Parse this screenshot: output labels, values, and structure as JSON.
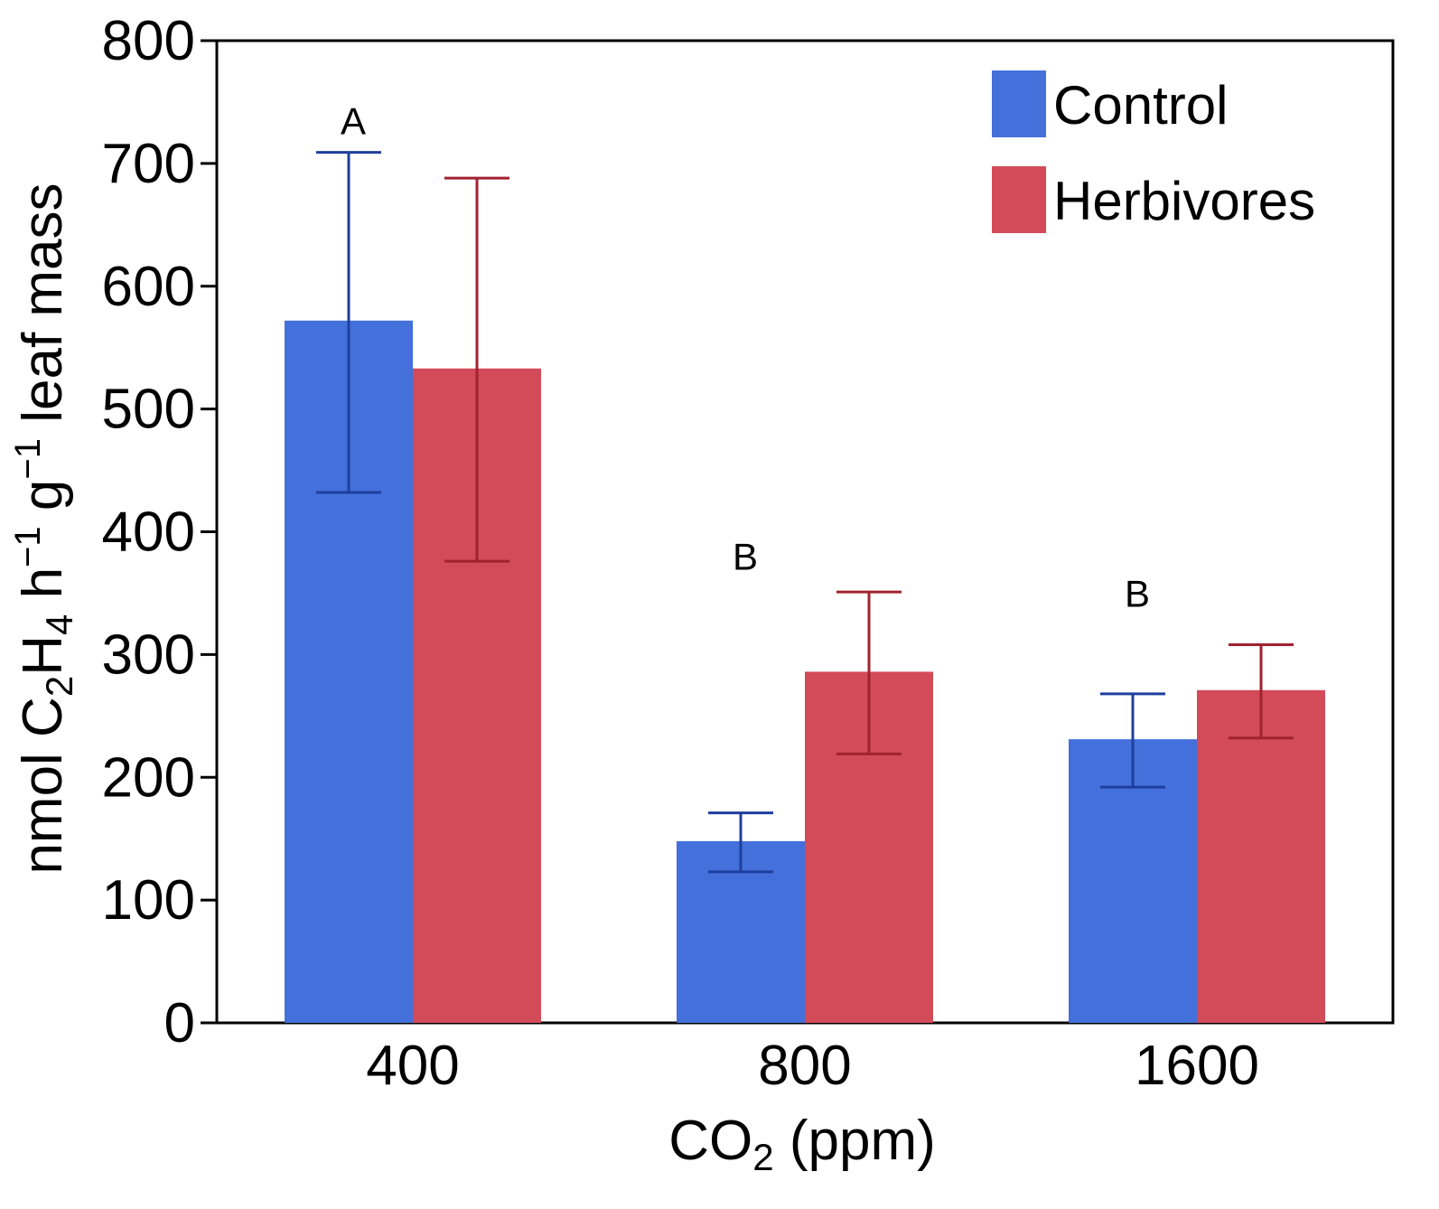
{
  "chart_data": {
    "type": "bar",
    "categories": [
      "400",
      "800",
      "1600"
    ],
    "series": [
      {
        "name": "Control",
        "color": "#4370db",
        "error_color": "#1f3f9e",
        "values": [
          572,
          148,
          231
        ],
        "err_low": [
          432,
          123,
          192
        ],
        "err_high": [
          709,
          171,
          268
        ]
      },
      {
        "name": "Herbivores",
        "color": "#d34a59",
        "error_color": "#a1222f",
        "values": [
          533,
          286,
          271
        ],
        "err_low": [
          376,
          219,
          232
        ],
        "err_high": [
          688,
          351,
          308
        ]
      }
    ],
    "significance_letters": [
      "A",
      "B",
      "B"
    ],
    "significance_y": [
      735,
      380,
      350
    ],
    "xlabel": {
      "main": "CO",
      "sub": "2",
      "rest": " (ppm)"
    },
    "ylabel": {
      "p1": "nmol C",
      "s1": "2",
      "p2": "H",
      "s2": "4",
      "p3": " h",
      "sup1": "−1",
      "p4": " g",
      "sup2": "−1",
      "p5": " leaf  mass"
    },
    "ylim": [
      0,
      800
    ],
    "yticks": [
      0,
      100,
      200,
      300,
      400,
      500,
      600,
      700,
      800
    ],
    "legend_position": "top-right",
    "grid": false
  }
}
